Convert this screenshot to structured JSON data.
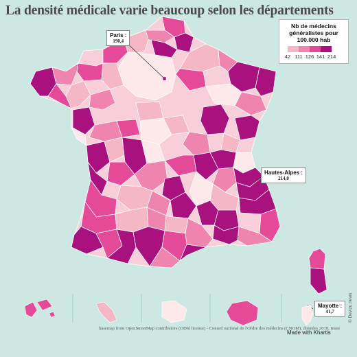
{
  "title": "La densité médicale varie beaucoup selon les départements",
  "legend": {
    "title": "Nb de médecins généralistes pour 100.000 hab",
    "colors": [
      "#fde9ea",
      "#f5b6c6",
      "#ef84ae",
      "#e54a98",
      "#a8117e"
    ],
    "breaks": [
      "42",
      "111",
      "126",
      "141",
      "214"
    ]
  },
  "callouts": {
    "paris": {
      "name": "Paris :",
      "value": "190,4"
    },
    "hautes_alpes": {
      "name": "Hautes-Alpes :",
      "value": "214,0"
    },
    "mayotte": {
      "name": "Mayotte :",
      "value": "41,7"
    }
  },
  "footer": {
    "source": "basemap from OpenStreetMap contributors (ODbl license) - Conseil national de l'Ordre des médecins (CNOM), données 2019, Insee",
    "made_with": "Made with Khartis",
    "copyright": "© Devizu.news"
  },
  "map_data": {
    "variable": "médecins généralistes pour 100.000 hab",
    "highlighted": [
      {
        "region": "Paris",
        "value": 190.4
      },
      {
        "region": "Hautes-Alpes",
        "value": 214.0
      },
      {
        "region": "Mayotte",
        "value": 41.7
      }
    ],
    "overseas_insets": [
      "Guadeloupe",
      "Martinique",
      "Guyane",
      "La Réunion",
      "Mayotte"
    ]
  }
}
